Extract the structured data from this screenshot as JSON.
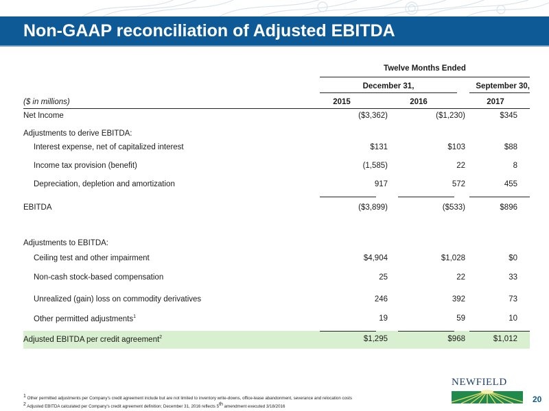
{
  "title": "Non-GAAP reconciliation of Adjusted EBITDA",
  "table": {
    "group_header": "Twelve Months Ended",
    "period_dec": "December 31,",
    "period_sep": "September 30,",
    "units": "($ in millions)",
    "years": [
      "2015",
      "2016",
      "2017"
    ],
    "rows": [
      {
        "label": "Net Income",
        "values": [
          "($3,362)",
          "($1,230)",
          "$345"
        ]
      },
      {
        "label": "Adjustments to derive EBITDA:",
        "values": [
          "",
          "",
          ""
        ]
      },
      {
        "label": "Interest expense, net of capitalized interest",
        "values": [
          "$131",
          "$103",
          "$88"
        ]
      },
      {
        "label": "Income tax provision (benefit)",
        "values": [
          "(1,585)",
          "22",
          "8"
        ]
      },
      {
        "label": "Depreciation, depletion and amortization",
        "values": [
          "917",
          "572",
          "455"
        ]
      },
      {
        "label": "EBITDA",
        "values": [
          "($3,899)",
          "($533)",
          "$896"
        ]
      },
      {
        "label": "Adjustments to EBITDA:",
        "values": [
          "",
          "",
          ""
        ]
      },
      {
        "label": "Ceiling test and other impairment",
        "values": [
          "$4,904",
          "$1,028",
          "$0"
        ]
      },
      {
        "label": "Non-cash stock-based compensation",
        "values": [
          "25",
          "22",
          "33"
        ]
      },
      {
        "label": "Unrealized (gain) loss on commodity derivatives",
        "values": [
          "246",
          "392",
          "73"
        ]
      },
      {
        "label": "Other permitted adjustments",
        "sup": "1",
        "values": [
          "19",
          "59",
          "10"
        ]
      },
      {
        "label": "Adjusted EBITDA per credit agreement",
        "sup": "2",
        "values": [
          "$1,295",
          "$968",
          "$1,012"
        ]
      }
    ]
  },
  "footnotes": {
    "note1_num": "1",
    "note1": "Other permitted adjustments per Company's credit agreement include but are not limited to inventory write-downs, office-lease abandonment, severance and relocation costs",
    "note2_num": "2",
    "note2_pre": "Adjusted EBITDA calculated per Company's credit agreement definition; December 31, 2016 reflects 5",
    "note2_sup": "th",
    "note2_post": " amendment executed 3/18/2016"
  },
  "logo_text": "NEWFIELD",
  "page_number": "20",
  "colors": {
    "title_bar": "#0e5a96",
    "highlight": "#d8f0cf",
    "logo": "#1d3f6e"
  }
}
